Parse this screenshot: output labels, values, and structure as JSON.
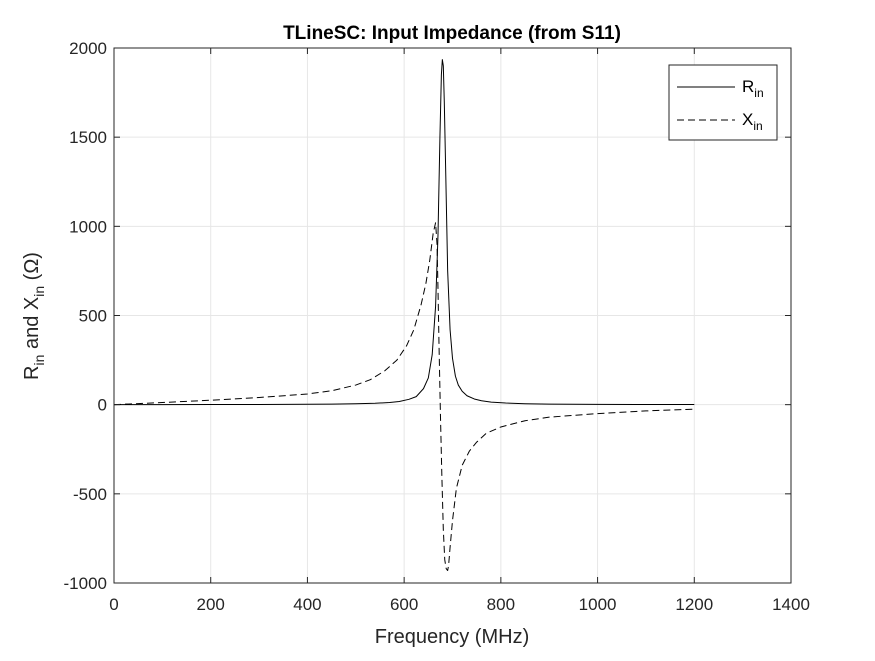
{
  "chart_data": {
    "type": "line",
    "title": "TLineSC: Input Impedance (from S11)",
    "xlabel": "Frequency (MHz)",
    "ylabel": {
      "r_main": "R",
      "r_sub": "in",
      "and": " and ",
      "x_main": "X",
      "x_sub": "in",
      "unit": " (Ω)"
    },
    "xlim": [
      0,
      1400
    ],
    "ylim": [
      -1000,
      2000
    ],
    "xticks": [
      0,
      200,
      400,
      600,
      800,
      1000,
      1200,
      1400
    ],
    "xtick_labels": [
      "0",
      "200",
      "400",
      "600",
      "800",
      "1000",
      "1200",
      "1400"
    ],
    "yticks": [
      -1000,
      -500,
      0,
      500,
      1000,
      1500,
      2000
    ],
    "ytick_labels": [
      "-1000",
      "-500",
      "0",
      "500",
      "1000",
      "1500",
      "2000"
    ],
    "grid": true,
    "legend_placement": "top-right",
    "series": [
      {
        "name": "R_in",
        "label_main": "R",
        "label_sub": "in",
        "line_style": "solid",
        "color": "#000000",
        "x": [
          0,
          100,
          200,
          300,
          400,
          450,
          500,
          540,
          570,
          590,
          610,
          625,
          640,
          650,
          658,
          665,
          670,
          674,
          677,
          679,
          681,
          683,
          686,
          690,
          695,
          700,
          706,
          712,
          720,
          730,
          745,
          760,
          780,
          810,
          850,
          900,
          1000,
          1100,
          1200
        ],
        "y": [
          0,
          0.4,
          0.7,
          1.2,
          2.2,
          3.2,
          5.5,
          8,
          12,
          18,
          30,
          45,
          90,
          150,
          280,
          550,
          950,
          1500,
          1850,
          1935,
          1900,
          1700,
          1300,
          750,
          420,
          260,
          160,
          110,
          75,
          50,
          32,
          22,
          14,
          9,
          5,
          3,
          1.5,
          1,
          0.8
        ]
      },
      {
        "name": "X_in",
        "label_main": "X",
        "label_sub": "in",
        "line_style": "dashed",
        "color": "#000000",
        "x": [
          0,
          100,
          200,
          300,
          400,
          450,
          500,
          530,
          560,
          585,
          605,
          620,
          635,
          645,
          653,
          660,
          665,
          668,
          670,
          672,
          675,
          678,
          681,
          684,
          687,
          690,
          692,
          695,
          700,
          708,
          720,
          735,
          750,
          770,
          800,
          850,
          900,
          1000,
          1100,
          1200
        ],
        "y": [
          0,
          12,
          25,
          40,
          60,
          78,
          110,
          140,
          190,
          250,
          330,
          420,
          560,
          680,
          810,
          960,
          1020,
          900,
          650,
          350,
          -50,
          -400,
          -700,
          -870,
          -920,
          -930,
          -900,
          -800,
          -650,
          -470,
          -340,
          -260,
          -210,
          -160,
          -125,
          -90,
          -70,
          -50,
          -35,
          -25
        ]
      }
    ]
  }
}
